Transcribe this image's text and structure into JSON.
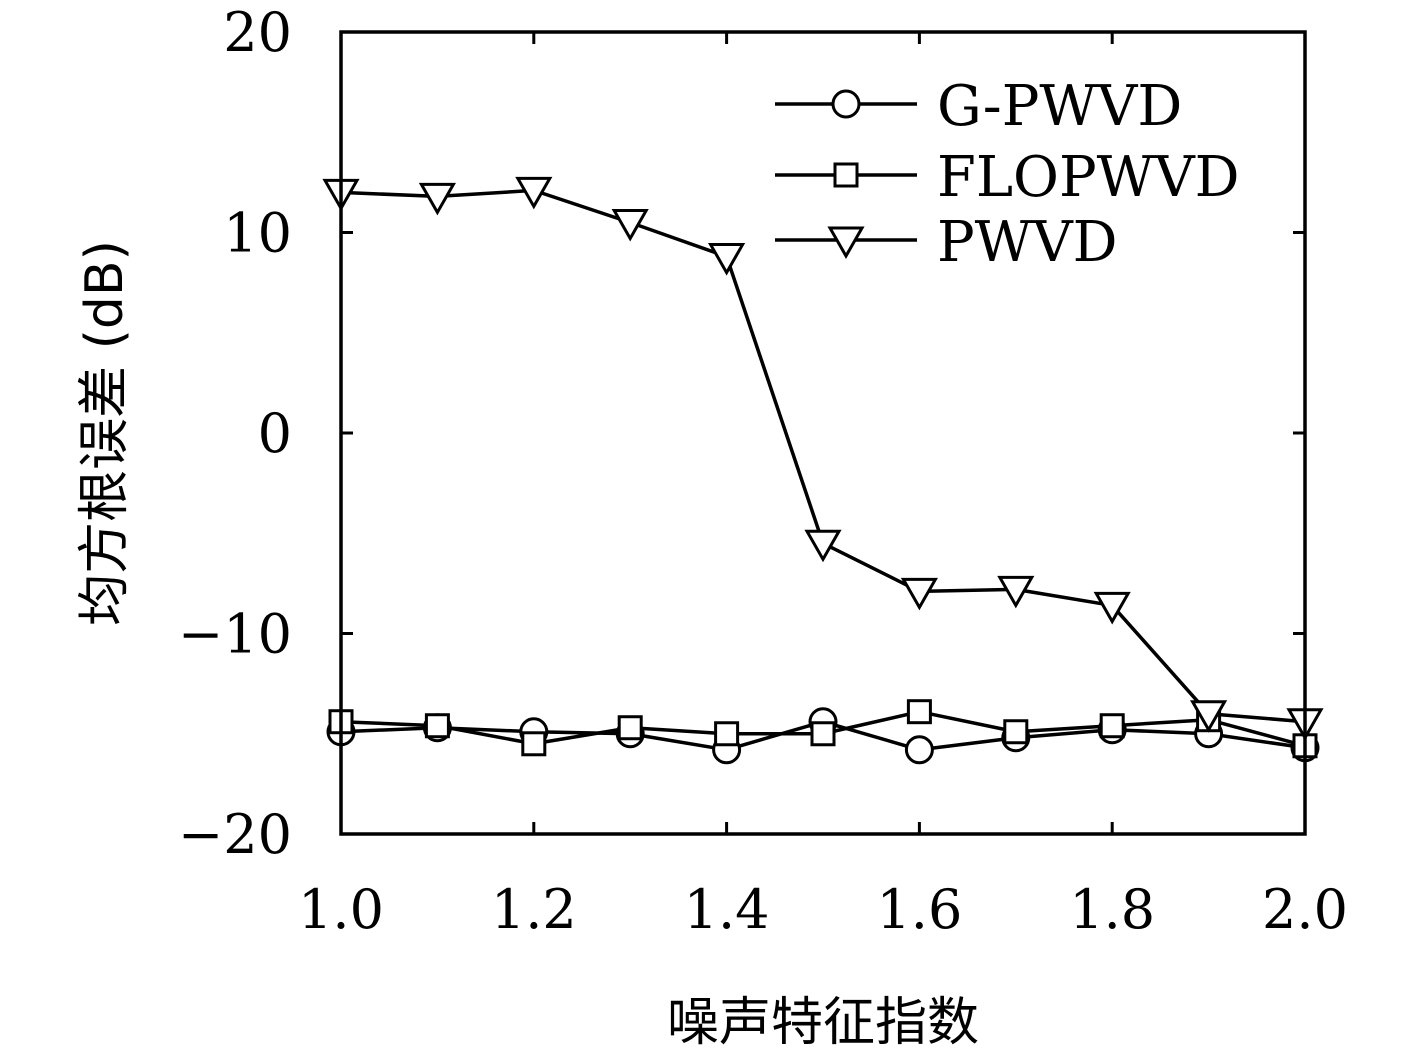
{
  "chart_data": {
    "type": "line",
    "xlabel": "噪声特征指数",
    "ylabel": "均方根误差 (dB)",
    "xlim": [
      1.0,
      2.0
    ],
    "ylim": [
      -20,
      20
    ],
    "xticks": [
      "1.0",
      "1.2",
      "1.4",
      "1.6",
      "1.8",
      "2.0"
    ],
    "yticks": [
      "20",
      "10",
      "0",
      "−10",
      "−20"
    ],
    "grid": false,
    "legend_position": "top-right",
    "x": [
      1.0,
      1.1,
      1.2,
      1.3,
      1.4,
      1.5,
      1.6,
      1.7,
      1.8,
      1.9,
      2.0
    ],
    "series": [
      {
        "name": "G-PWVD",
        "marker": "circle",
        "values": [
          -14.9,
          -14.7,
          -14.9,
          -15.0,
          -15.8,
          -14.4,
          -15.8,
          -15.2,
          -14.8,
          -15.0,
          -15.7
        ]
      },
      {
        "name": "FLOPWVD",
        "marker": "square",
        "values": [
          -14.4,
          -14.6,
          -15.5,
          -14.7,
          -15.0,
          -15.0,
          -13.9,
          -14.9,
          -14.6,
          -14.3,
          -15.6
        ]
      },
      {
        "name": "PWVD",
        "marker": "triangle-down",
        "values": [
          12.0,
          11.8,
          12.1,
          10.5,
          8.8,
          -5.5,
          -7.9,
          -7.8,
          -8.6,
          -14.0,
          -14.4
        ]
      }
    ]
  }
}
